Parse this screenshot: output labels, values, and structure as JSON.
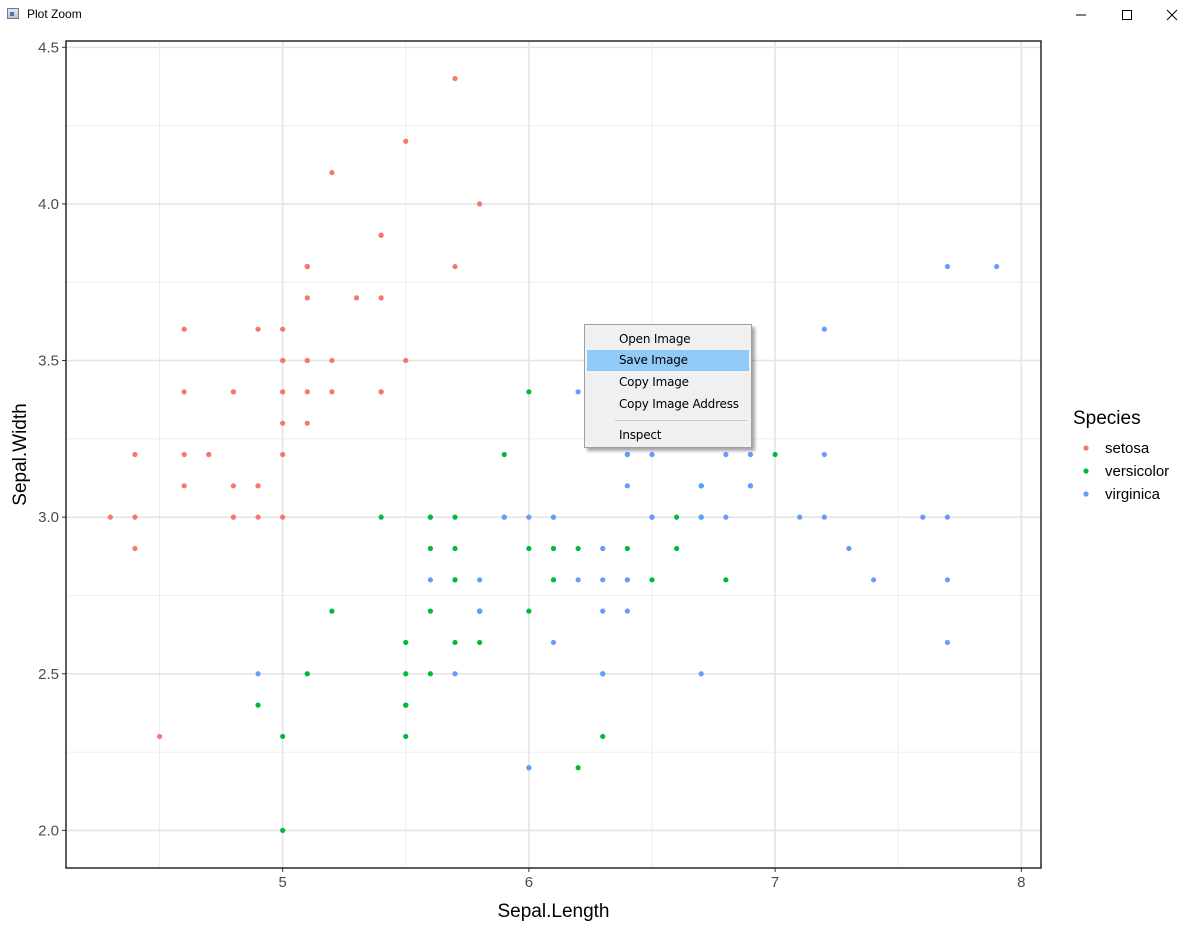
{
  "window": {
    "title": "Plot Zoom",
    "icons": {
      "app": "plot-window-icon",
      "minimize": "minimize-icon",
      "maximize": "maximize-icon",
      "close": "close-icon"
    }
  },
  "chart_data": {
    "type": "scatter",
    "xlabel": "Sepal.Length",
    "ylabel": "Sepal.Width",
    "xlim": [
      4.12,
      8.08
    ],
    "ylim": [
      1.88,
      4.52
    ],
    "xticks": [
      5,
      6,
      7,
      8
    ],
    "xtick_labels": [
      "5",
      "6",
      "7",
      "8"
    ],
    "yticks": [
      2.0,
      2.5,
      3.0,
      3.5,
      4.0,
      4.5
    ],
    "ytick_labels": [
      "2.0",
      "2.5",
      "3.0",
      "3.5",
      "4.0",
      "4.5"
    ],
    "grid": true,
    "legend": {
      "title": "Species",
      "position": "right"
    },
    "series": [
      {
        "name": "setosa",
        "color": "#F8766D",
        "x": [
          5.1,
          4.9,
          4.7,
          4.6,
          5.0,
          5.4,
          4.6,
          5.0,
          4.4,
          4.9,
          5.4,
          4.8,
          4.8,
          4.3,
          5.8,
          5.7,
          5.4,
          5.1,
          5.7,
          5.1,
          5.4,
          5.1,
          4.6,
          5.1,
          4.8,
          5.0,
          5.0,
          5.2,
          5.2,
          4.7,
          4.8,
          5.4,
          5.2,
          5.5,
          4.9,
          5.0,
          5.5,
          4.9,
          4.4,
          5.1,
          5.0,
          4.5,
          4.4,
          5.0,
          5.1,
          4.8,
          5.1,
          4.6,
          5.3,
          5.0
        ],
        "y": [
          3.5,
          3.0,
          3.2,
          3.1,
          3.6,
          3.9,
          3.4,
          3.4,
          2.9,
          3.1,
          3.7,
          3.4,
          3.0,
          3.0,
          4.0,
          4.4,
          3.9,
          3.5,
          3.8,
          3.8,
          3.4,
          3.7,
          3.6,
          3.3,
          3.4,
          3.0,
          3.4,
          3.5,
          3.4,
          3.2,
          3.1,
          3.4,
          4.1,
          4.2,
          3.1,
          3.2,
          3.5,
          3.6,
          3.0,
          3.4,
          3.5,
          2.3,
          3.2,
          3.5,
          3.8,
          3.0,
          3.8,
          3.2,
          3.7,
          3.3
        ]
      },
      {
        "name": "versicolor",
        "color": "#00BA38",
        "x": [
          7.0,
          6.4,
          6.9,
          5.5,
          6.5,
          5.7,
          6.3,
          4.9,
          6.6,
          5.2,
          5.0,
          5.9,
          6.0,
          6.1,
          5.6,
          6.7,
          5.6,
          5.8,
          6.2,
          5.6,
          5.9,
          6.1,
          6.3,
          6.1,
          6.4,
          6.6,
          6.8,
          6.7,
          6.0,
          5.7,
          5.5,
          5.5,
          5.8,
          6.0,
          5.4,
          6.0,
          6.7,
          6.3,
          5.6,
          5.5,
          5.5,
          6.1,
          5.8,
          5.0,
          5.6,
          5.7,
          5.7,
          6.2,
          5.1,
          5.7
        ],
        "y": [
          3.2,
          3.2,
          3.1,
          2.3,
          2.8,
          2.8,
          3.3,
          2.4,
          2.9,
          2.7,
          2.0,
          3.0,
          2.2,
          2.9,
          2.9,
          3.1,
          3.0,
          2.7,
          2.2,
          2.5,
          3.2,
          2.8,
          2.5,
          2.8,
          2.9,
          3.0,
          2.8,
          3.0,
          2.9,
          2.6,
          2.4,
          2.4,
          2.7,
          2.7,
          3.0,
          3.4,
          3.1,
          2.3,
          3.0,
          2.5,
          2.6,
          3.0,
          2.6,
          2.3,
          2.7,
          3.0,
          2.9,
          2.9,
          2.5,
          2.8
        ]
      },
      {
        "name": "virginica",
        "color": "#619CFF",
        "x": [
          6.3,
          5.8,
          7.1,
          6.3,
          6.5,
          7.6,
          4.9,
          7.3,
          6.7,
          7.2,
          6.5,
          6.4,
          6.8,
          5.7,
          5.8,
          6.4,
          6.5,
          7.7,
          7.7,
          6.0,
          6.9,
          5.6,
          7.7,
          6.3,
          6.7,
          7.2,
          6.2,
          6.1,
          6.4,
          7.2,
          7.4,
          7.9,
          6.4,
          6.3,
          6.1,
          7.7,
          6.3,
          6.4,
          6.0,
          6.9,
          6.7,
          6.9,
          5.8,
          6.8,
          6.7,
          6.7,
          6.3,
          6.5,
          6.2,
          5.9
        ],
        "y": [
          3.3,
          2.7,
          3.0,
          2.9,
          3.0,
          3.0,
          2.5,
          2.9,
          2.5,
          3.6,
          3.2,
          2.7,
          3.0,
          2.5,
          2.8,
          3.2,
          3.0,
          3.8,
          2.6,
          2.2,
          3.2,
          2.8,
          2.8,
          2.7,
          3.3,
          3.2,
          2.8,
          3.0,
          2.8,
          3.0,
          2.8,
          3.8,
          2.8,
          2.8,
          2.6,
          3.0,
          3.4,
          3.1,
          3.0,
          3.1,
          3.1,
          3.1,
          2.7,
          3.2,
          3.3,
          3.0,
          2.5,
          3.0,
          3.4,
          3.0
        ]
      }
    ]
  },
  "context_menu": {
    "items": [
      {
        "label": "Open Image",
        "highlighted": false
      },
      {
        "label": "Save Image",
        "highlighted": true
      },
      {
        "label": "Copy Image",
        "highlighted": false
      },
      {
        "label": "Copy Image Address",
        "highlighted": false
      },
      {
        "label": "Inspect",
        "highlighted": false
      }
    ]
  }
}
